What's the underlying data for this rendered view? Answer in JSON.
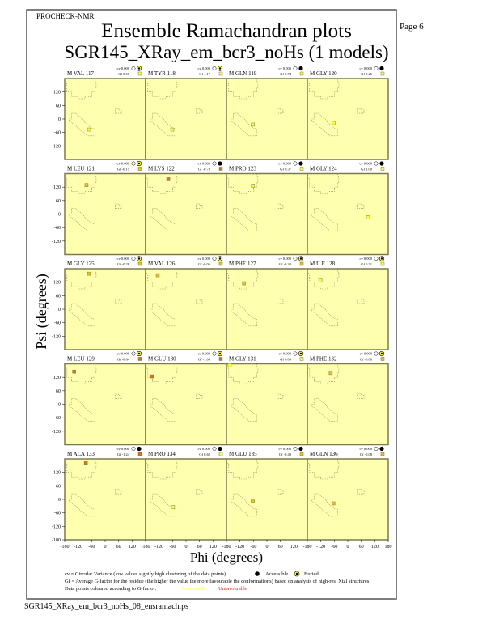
{
  "header": {
    "program": "PROCHECK-NMR",
    "page": "Page  6",
    "title": "Ensemble Ramachandran plots",
    "subtitle": "SGR145_XRay_em_bcr3_noHs (1 models)"
  },
  "footer": {
    "filename": "SGR145_XRay_em_bcr3_noHs_08_ensramach.ps"
  },
  "legend": {
    "cv_text": "cv = Circular Variance (low values signify high clustering of the data points).",
    "accessible": "Accessible",
    "buried": "Buried",
    "gf_text": "Gf = Average G-factor for the residue (the higher the value the more favourable the conformations) based on analysis of high-res. Xtal structures",
    "colour_text": "Data points coloured according to G-factor:",
    "favourable": "Favourable",
    "unfavourable": "Unfavourable"
  },
  "colors": {
    "panel_bg": "#ffffb0",
    "frame": "#7a7a4a",
    "favourable": "#ffff40",
    "unfavourable": "#e07010",
    "region": "#8a8a50",
    "unfav_text": "#e02020"
  },
  "chart_data": {
    "type": "scatter",
    "xlabel": "Phi (degrees)",
    "ylabel": "Psi (degrees)",
    "xlim": [
      -180,
      180
    ],
    "ylim": [
      -180,
      180
    ],
    "xticks": [
      "-180",
      "-120",
      "-60",
      "0",
      "60",
      "120",
      "180"
    ],
    "yticks": [
      "120",
      "60",
      "0",
      "-60",
      "-120",
      "-180"
    ],
    "panels": [
      {
        "label": "M VAL 117",
        "cv": "cv 0.000",
        "gf": "Gf 0.56",
        "gf_value": 0.56,
        "exposure": "buried",
        "phi": -72,
        "psi": -47
      },
      {
        "label": "M TYR 118",
        "cv": "cv 0.000",
        "gf": "Gf 1.17",
        "gf_value": 1.17,
        "exposure": "buried",
        "phi": -61,
        "psi": -47
      },
      {
        "label": "M GLN 119",
        "cv": "cv 0.000",
        "gf": "Gf 0.74",
        "gf_value": 0.74,
        "exposure": "accessible",
        "phi": -62,
        "psi": -25
      },
      {
        "label": "M GLY 120",
        "cv": "cv 0.000",
        "gf": "Gf 0.25",
        "gf_value": 0.25,
        "exposure": "accessible",
        "phi": -64,
        "psi": -18
      },
      {
        "label": "M LEU 121",
        "cv": "cv 0.000",
        "gf": "Gf -0.15",
        "gf_value": -0.15,
        "exposure": "buried",
        "phi": -83,
        "psi": 129
      },
      {
        "label": "M LYS 122",
        "cv": "cv 0.000",
        "gf": "Gf -0.73",
        "gf_value": -0.73,
        "exposure": "accessible",
        "phi": -79,
        "psi": 155
      },
      {
        "label": "M PRO 123",
        "cv": "cv 0.000",
        "gf": "Gf 0.37",
        "gf_value": 0.37,
        "exposure": "accessible",
        "phi": -62,
        "psi": 126
      },
      {
        "label": "M GLY 124",
        "cv": "cv 0.000",
        "gf": "Gf 1.00",
        "gf_value": 1.0,
        "exposure": "accessible",
        "phi": 90,
        "psi": -14
      },
      {
        "label": "M GLY 125",
        "cv": "cv 0.000",
        "gf": "Gf -0.28",
        "gf_value": -0.28,
        "exposure": "buried",
        "phi": -72,
        "psi": 158
      },
      {
        "label": "M VAL 126",
        "cv": "cv 0.000",
        "gf": "Gf -0.06",
        "gf_value": -0.06,
        "exposure": "buried",
        "phi": -126,
        "psi": 151
      },
      {
        "label": "M PHE 127",
        "cv": "cv 0.000",
        "gf": "Gf -0.30",
        "gf_value": -0.3,
        "exposure": "buried",
        "phi": -102,
        "psi": 115
      },
      {
        "label": "M ILE 128",
        "cv": "cv 0.000",
        "gf": "Gf 0.31",
        "gf_value": 0.31,
        "exposure": "buried",
        "phi": -122,
        "psi": 129
      },
      {
        "label": "M LEU 129",
        "cv": "cv 0.000",
        "gf": "Gf -0.64",
        "gf_value": -0.64,
        "exposure": "buried",
        "phi": -138,
        "psi": 145
      },
      {
        "label": "M GLU 130",
        "cv": "cv 0.000",
        "gf": "Gf -1.05",
        "gf_value": -1.05,
        "exposure": "buried",
        "phi": -152,
        "psi": 124
      },
      {
        "label": "M GLY 131",
        "cv": "cv 0.000",
        "gf": "Gf 0.09",
        "gf_value": 0.09,
        "exposure": "buried",
        "phi": -166,
        "psi": 174
      },
      {
        "label": "M PHE 132",
        "cv": "cv 0.000",
        "gf": "Gf -0.06",
        "gf_value": -0.06,
        "exposure": "buried",
        "phi": -76,
        "psi": 139
      },
      {
        "label": "M ALA 133",
        "cv": "cv 0.000",
        "gf": "Gf -1.24",
        "gf_value": -1.24,
        "exposure": "accessible",
        "phi": -86,
        "psi": 163
      },
      {
        "label": "M PRO 134",
        "cv": "cv 0.000",
        "gf": "Gf 0.62",
        "gf_value": 0.62,
        "exposure": "accessible",
        "phi": -58,
        "psi": -34
      },
      {
        "label": "M GLU 135",
        "cv": "cv 0.000",
        "gf": "Gf -0.49",
        "gf_value": -0.49,
        "exposure": "accessible",
        "phi": -63,
        "psi": -6
      },
      {
        "label": "M GLN 136",
        "cv": "cv 0.000",
        "gf": "Gf -0.08",
        "gf_value": -0.08,
        "exposure": "accessible",
        "phi": -64,
        "psi": -18
      }
    ]
  }
}
